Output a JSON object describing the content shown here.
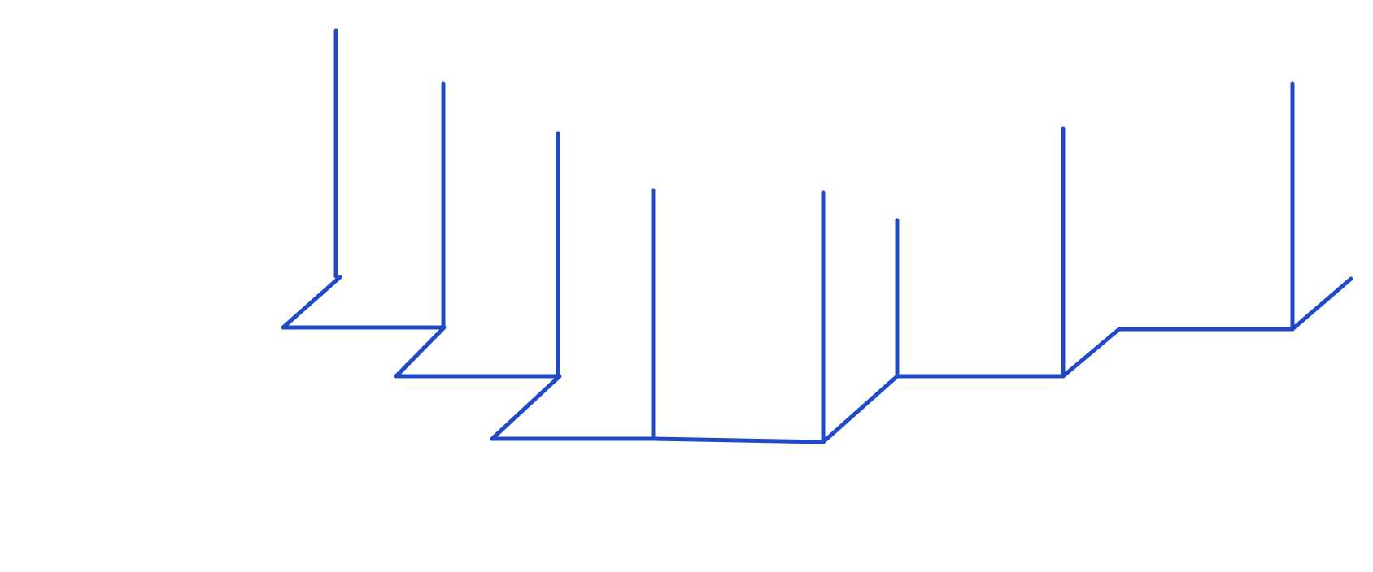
{
  "diagram": {
    "stroke_color": "#1f49c7",
    "background_color": "#ffffff"
  }
}
